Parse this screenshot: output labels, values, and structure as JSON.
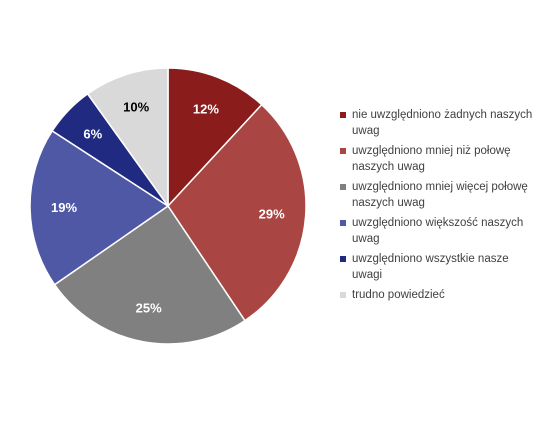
{
  "chart_data": {
    "type": "pie",
    "title": "",
    "start_angle_deg": 0,
    "direction": "clockwise",
    "slices": [
      {
        "label": "nie uwzględniono żadnych naszych uwag",
        "value": 12,
        "display": "12%",
        "color": "#8b1c1c",
        "label_color": "#ffffff"
      },
      {
        "label": "uwzględniono mniej niż połowę naszych uwag",
        "value": 29,
        "display": "29%",
        "color": "#a94542",
        "label_color": "#ffffff"
      },
      {
        "label": "uwzględniono mniej więcej połowę naszych uwag",
        "value": 25,
        "display": "25%",
        "color": "#808080",
        "label_color": "#ffffff"
      },
      {
        "label": "uwzględniono większość naszych uwag",
        "value": 19,
        "display": "19%",
        "color": "#4f58a5",
        "label_color": "#ffffff"
      },
      {
        "label": "uwzględniono wszystkie nasze uwagi",
        "value": 6,
        "display": "6%",
        "color": "#1f2a80",
        "label_color": "#ffffff"
      },
      {
        "label": "trudno powiedzieć",
        "value": 10,
        "display": "10%",
        "color": "#d9d9d9",
        "label_color": "#000000"
      }
    ],
    "legend_position": "right"
  }
}
